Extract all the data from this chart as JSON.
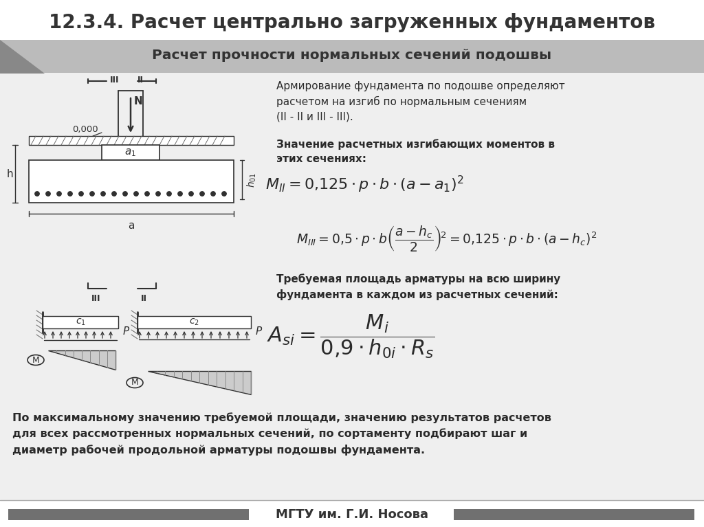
{
  "title": "12.3.4. Расчет центрально загруженных фундаментов",
  "subtitle": "Расчет прочности нормальных сечений подошвы",
  "bg_color": "#efefef",
  "footer_text": "МГТУ им. Г.И. Носова",
  "text_color": "#2a2a2a",
  "dc": "#303030",
  "right_text1": "Армирование фундамента по подошве определяют\nрасчетом на изгиб по нормальным сечениям\n(II - II и III - III).",
  "right_text2": "Значение расчетных изгибающих моментов в\nэтих сечениях:",
  "right_text3": "Требуемая площадь арматуры на всю ширину\nфундамента в каждом из расчетных сечений:",
  "bottom_text": "По максимальному значению требуемой площади, значению результатов расчетов\nдля всех рассмотренных нормальных сечений, по сортаменту подбирают шаг и\nдиаметр рабочей продольной арматуры подошвы фундамента."
}
